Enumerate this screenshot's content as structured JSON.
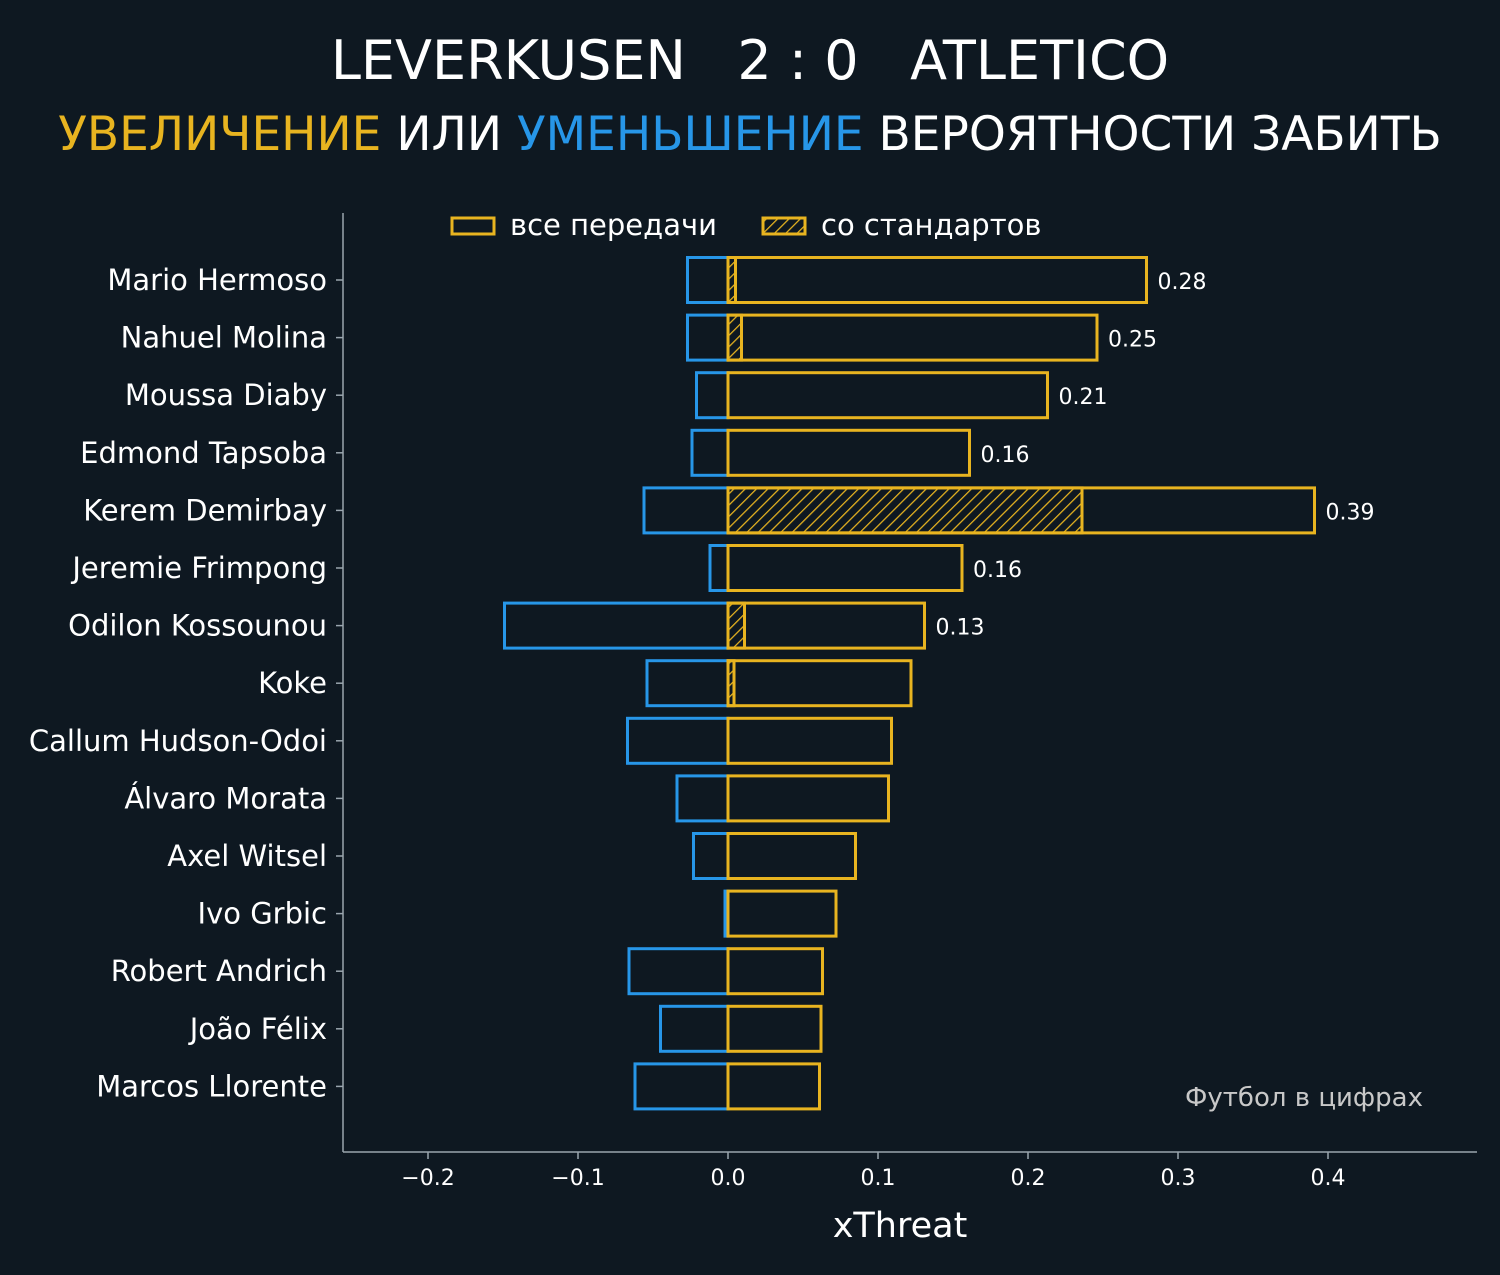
{
  "header": {
    "home_team": "LEVERKUSEN",
    "score": "2 : 0",
    "away_team": "ATLETICO",
    "subtitle_part1": "УВЕЛИЧЕНИЕ",
    "subtitle_part2": "ИЛИ",
    "subtitle_part3": "УМЕНЬШЕНИЕ",
    "subtitle_part4": "ВЕРОЯТНОСТИ ЗАБИТЬ"
  },
  "colors": {
    "background": "#0e1821",
    "increase": "#e8b420",
    "decrease": "#2796e8",
    "axis": "#9aa5ae"
  },
  "watermark": "Футбол в цифрах",
  "chart_data": {
    "type": "bar",
    "orientation": "horizontal",
    "xlabel": "xThreat",
    "ylabel": "",
    "xlim": [
      -0.257,
      0.5
    ],
    "x_ticks": [
      -0.2,
      -0.1,
      0.0,
      0.1,
      0.2,
      0.3,
      0.4
    ],
    "x_tick_labels": [
      "−0.2",
      "−0.1",
      "0.0",
      "0.1",
      "0.2",
      "0.3",
      "0.4"
    ],
    "legend": {
      "placement": "top-center",
      "entries": [
        "все передачи",
        "со стандартов"
      ]
    },
    "categories": [
      "Mario Hermoso",
      "Nahuel Molina",
      "Moussa Diaby",
      "Edmond Tapsoba",
      "Kerem Demirbay",
      "Jeremie Frimpong",
      "Odilon Kossounou",
      "Koke",
      "Callum Hudson-Odoi",
      "Álvaro Morata",
      "Axel Witsel",
      "Ivo Grbic",
      "Robert Andrich",
      "João Félix",
      "Marcos Llorente"
    ],
    "series": [
      {
        "name": "все передачи (увеличение)",
        "values": [
          0.279,
          0.246,
          0.213,
          0.161,
          0.391,
          0.156,
          0.131,
          0.122,
          0.109,
          0.107,
          0.085,
          0.072,
          0.063,
          0.062,
          0.061
        ]
      },
      {
        "name": "со стандартов",
        "values": [
          0.005,
          0.009,
          0,
          0,
          0.236,
          0,
          0.011,
          0.004,
          0,
          0,
          0,
          0,
          0,
          0,
          0
        ]
      },
      {
        "name": "все передачи (уменьшение)",
        "values": [
          -0.027,
          -0.027,
          -0.021,
          -0.024,
          -0.056,
          -0.012,
          -0.149,
          -0.054,
          -0.067,
          -0.034,
          -0.023,
          -0.002,
          -0.066,
          -0.045,
          -0.062
        ]
      }
    ],
    "value_labels": [
      "0.28",
      "0.25",
      "0.21",
      "0.16",
      "0.39",
      "0.16",
      "0.13",
      "",
      "",
      "",
      "",
      "",
      "",
      "",
      ""
    ]
  }
}
